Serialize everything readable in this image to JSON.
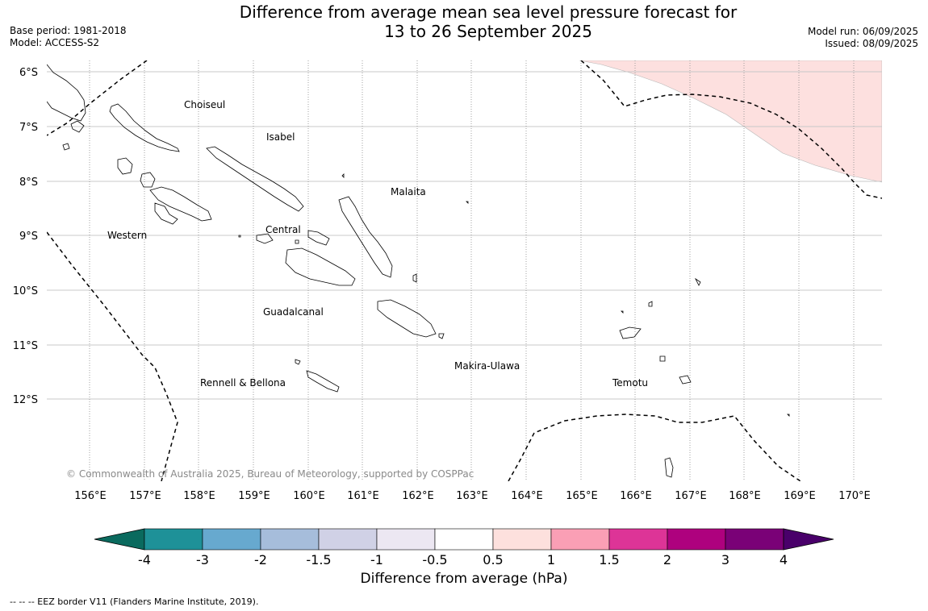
{
  "title": {
    "line1": "Difference from average mean sea level pressure forecast for",
    "line2": "13 to 26 September 2025"
  },
  "meta_left": {
    "base_period": "Base period: 1981-2018",
    "model": "Model: ACCESS-S2"
  },
  "meta_right": {
    "model_run": "Model run: 06/09/2025",
    "issued": "Issued: 08/09/2025"
  },
  "map": {
    "lat_ticks": [
      "6°S",
      "7°S",
      "8°S",
      "9°S",
      "10°S",
      "11°S",
      "12°S"
    ],
    "lon_ticks": [
      "156°E",
      "157°E",
      "158°E",
      "159°E",
      "160°E",
      "161°E",
      "162°E",
      "163°E",
      "164°E",
      "165°E",
      "166°E",
      "167°E",
      "168°E",
      "169°E",
      "170°E"
    ],
    "regions": [
      {
        "name": "Choiseul"
      },
      {
        "name": "Isabel"
      },
      {
        "name": "Malaita"
      },
      {
        "name": "Western"
      },
      {
        "name": "Central"
      },
      {
        "name": "Guadalcanal"
      },
      {
        "name": "Makira-Ulawa"
      },
      {
        "name": "Rennell & Bellona"
      },
      {
        "name": "Temotu"
      }
    ],
    "copyright": "© Commonwealth of Australia 2025, Bureau of Meteorology, supported by COSPPac",
    "anomaly_fill_color": "#fde0df",
    "anomaly_class": "0.5 to 1"
  },
  "colorbar": {
    "label": "Difference from average (hPa)",
    "tick_labels": [
      "-4",
      "-3",
      "-2",
      "-1.5",
      "-1",
      "-0.5",
      "0.5",
      "1",
      "1.5",
      "2",
      "3",
      "4"
    ],
    "colors": {
      "under": "#0a6a5e",
      "bins": [
        "#1e9198",
        "#67a9cf",
        "#a6bddb",
        "#d0d1e6",
        "#ece7f2",
        "#ffffff",
        "#fde0dd",
        "#fa9fb5",
        "#dd3497",
        "#ae017e",
        "#7a0177"
      ],
      "over": "#49006a"
    }
  },
  "footnote": "--  --  -- EEZ border V11 (Flanders Marine Institute, 2019)."
}
